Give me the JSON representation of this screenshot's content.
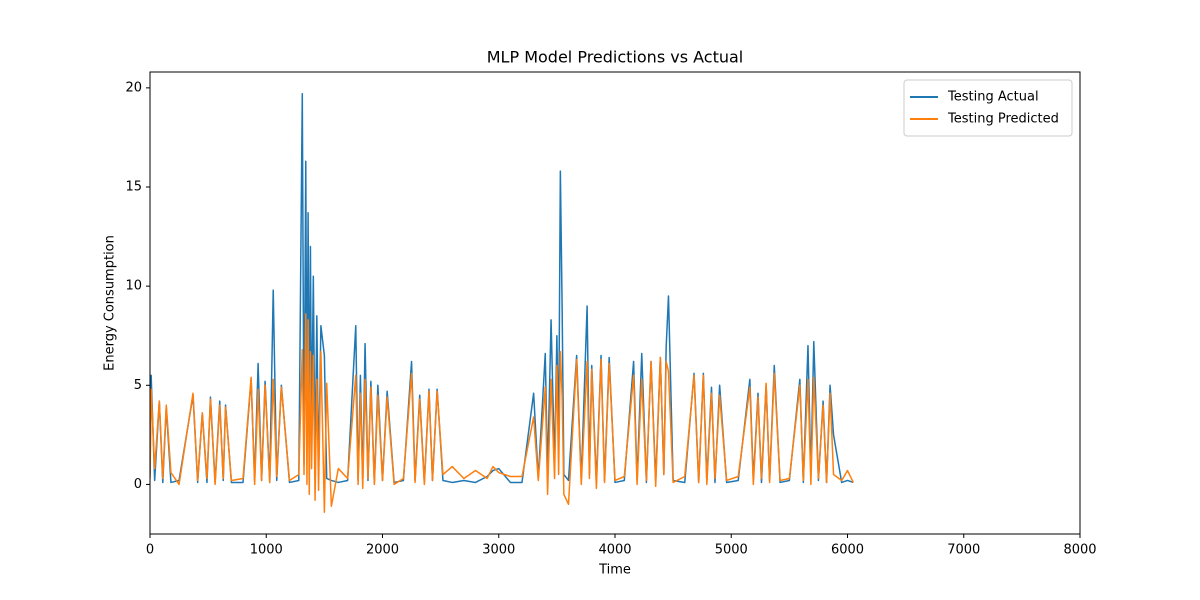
{
  "chart_data": {
    "type": "line",
    "title": "MLP Model Predictions vs Actual",
    "x_label": "Time",
    "y_label": "Energy Consumption",
    "x": [
      0,
      10,
      40,
      80,
      110,
      140,
      180,
      250,
      370,
      410,
      450,
      490,
      520,
      560,
      600,
      630,
      650,
      700,
      800,
      870,
      900,
      930,
      960,
      990,
      1030,
      1060,
      1090,
      1130,
      1200,
      1280,
      1310,
      1325,
      1340,
      1350,
      1360,
      1370,
      1380,
      1390,
      1405,
      1420,
      1435,
      1450,
      1470,
      1500,
      1520,
      1560,
      1620,
      1700,
      1770,
      1790,
      1810,
      1830,
      1850,
      1875,
      1900,
      1930,
      1960,
      2000,
      2040,
      2100,
      2180,
      2250,
      2280,
      2320,
      2360,
      2400,
      2430,
      2470,
      2520,
      2600,
      2700,
      2800,
      2900,
      2950,
      3000,
      3100,
      3200,
      3300,
      3340,
      3400,
      3420,
      3450,
      3480,
      3500,
      3515,
      3530,
      3545,
      3560,
      3600,
      3670,
      3710,
      3760,
      3780,
      3800,
      3840,
      3880,
      3910,
      3950,
      4000,
      4080,
      4160,
      4190,
      4230,
      4270,
      4310,
      4350,
      4390,
      4420,
      4440,
      4460,
      4500,
      4600,
      4680,
      4720,
      4760,
      4790,
      4830,
      4860,
      4900,
      4960,
      5060,
      5160,
      5190,
      5230,
      5260,
      5300,
      5330,
      5370,
      5420,
      5500,
      5590,
      5620,
      5660,
      5685,
      5710,
      5750,
      5790,
      5820,
      5850,
      5880,
      5950,
      6000,
      6050
    ],
    "series": [
      {
        "name": "Testing Actual",
        "color": "#1f77b4",
        "values": [
          0.5,
          5.5,
          0.2,
          4.2,
          0.1,
          3.9,
          0.1,
          0.2,
          4.5,
          0.1,
          3.6,
          0.1,
          4.4,
          0.1,
          4.2,
          0.2,
          4.0,
          0.1,
          0.1,
          5.3,
          0.2,
          6.1,
          0.2,
          5.2,
          0.1,
          9.8,
          0.2,
          5.0,
          0.1,
          0.2,
          19.7,
          1.0,
          16.3,
          2.0,
          13.7,
          1.5,
          12.0,
          2.5,
          10.5,
          1.0,
          8.5,
          0.5,
          8.0,
          6.5,
          0.3,
          0.2,
          0.1,
          0.2,
          8.0,
          0.2,
          5.5,
          0.1,
          7.1,
          0.2,
          5.2,
          0.1,
          5.0,
          0.2,
          4.7,
          0.1,
          0.2,
          6.2,
          0.2,
          4.5,
          0.1,
          4.8,
          0.2,
          4.8,
          0.2,
          0.1,
          0.2,
          0.1,
          0.4,
          0.7,
          0.8,
          0.1,
          0.1,
          4.6,
          0.3,
          6.6,
          0.5,
          8.3,
          1.0,
          7.5,
          2.0,
          15.8,
          9.0,
          0.5,
          0.2,
          6.5,
          0.2,
          9.0,
          0.5,
          6.0,
          0.1,
          6.5,
          0.2,
          6.4,
          0.1,
          0.2,
          6.2,
          0.2,
          6.6,
          0.1,
          6.2,
          0.2,
          6.4,
          0.5,
          6.9,
          9.5,
          0.2,
          0.1,
          5.6,
          0.1,
          5.6,
          0.2,
          4.9,
          0.1,
          5.0,
          0.1,
          0.2,
          5.3,
          0.2,
          4.6,
          0.1,
          5.0,
          0.2,
          6.0,
          0.1,
          0.2,
          5.3,
          0.1,
          7.0,
          0.5,
          7.2,
          0.2,
          4.2,
          0.1,
          5.0,
          2.5,
          0.1,
          0.2,
          0.1
        ]
      },
      {
        "name": "Testing Predicted",
        "color": "#ff7f0e",
        "values": [
          0.3,
          4.8,
          0.8,
          4.2,
          0.3,
          4.0,
          0.6,
          0.0,
          4.6,
          0.2,
          3.6,
          0.3,
          4.3,
          0.0,
          4.0,
          0.3,
          3.9,
          0.2,
          0.3,
          5.4,
          0.0,
          4.8,
          0.2,
          5.0,
          0.1,
          5.3,
          0.4,
          4.9,
          0.2,
          0.5,
          6.8,
          0.5,
          8.6,
          0.0,
          8.3,
          -0.5,
          6.7,
          0.8,
          6.5,
          -0.8,
          5.3,
          -0.3,
          6.7,
          -1.4,
          5.1,
          -1.1,
          0.8,
          0.3,
          5.5,
          0.0,
          4.6,
          -0.2,
          5.3,
          0.3,
          4.9,
          0.0,
          4.5,
          0.2,
          4.4,
          0.0,
          0.3,
          5.6,
          0.1,
          4.3,
          0.0,
          4.7,
          0.2,
          4.7,
          0.5,
          0.9,
          0.3,
          0.7,
          0.3,
          0.9,
          0.6,
          0.4,
          0.4,
          3.4,
          0.2,
          4.9,
          -0.5,
          5.3,
          0.3,
          6.0,
          0.5,
          6.7,
          4.5,
          -0.5,
          -1.0,
          6.3,
          0.0,
          6.2,
          0.3,
          5.8,
          -0.2,
          6.3,
          0.1,
          6.1,
          0.2,
          0.4,
          5.5,
          0.0,
          5.3,
          0.2,
          6.2,
          -0.1,
          6.4,
          0.5,
          6.2,
          5.7,
          0.1,
          0.4,
          5.5,
          0.1,
          5.5,
          0.0,
          4.6,
          0.3,
          4.5,
          0.2,
          0.4,
          4.9,
          0.0,
          4.4,
          0.3,
          5.1,
          0.1,
          5.6,
          0.2,
          0.3,
          5.0,
          0.2,
          5.3,
          0.0,
          5.4,
          0.3,
          4.0,
          0.1,
          4.6,
          0.5,
          0.2,
          0.7,
          0.1
        ]
      }
    ],
    "xlim": [
      0,
      8000
    ],
    "xticks": [
      0,
      1000,
      2000,
      3000,
      4000,
      5000,
      6000,
      7000,
      8000
    ],
    "ylim": [
      -2.5,
      20.8
    ],
    "yticks": [
      0,
      5,
      10,
      15,
      20
    ],
    "legend": "upper right",
    "grid": false
  }
}
